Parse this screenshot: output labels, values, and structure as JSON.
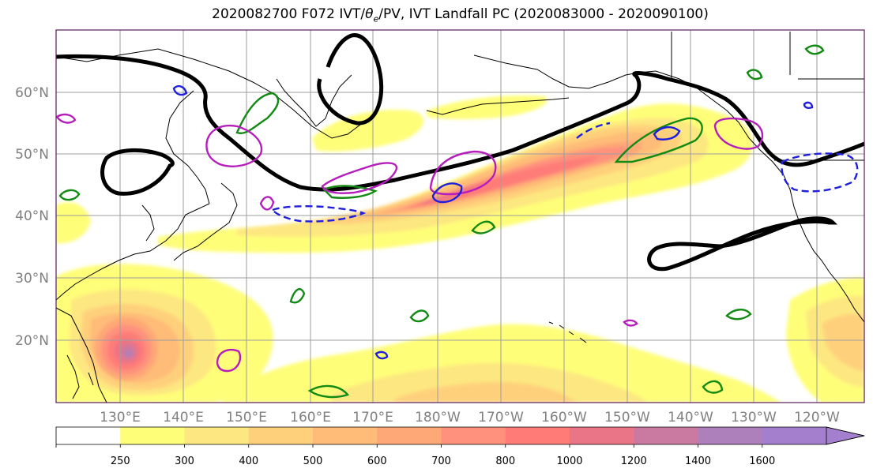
{
  "title": {
    "prefix": "2020082700 F072 IVT/",
    "theta": "θ",
    "theta_sub": "e",
    "suffix": "/PV, IVT Landfall PC (2020083000 - 2020090100)"
  },
  "map": {
    "lon_labels": [
      "130°E",
      "140°E",
      "150°E",
      "160°E",
      "170°E",
      "180°W",
      "170°W",
      "160°W",
      "150°W",
      "140°W",
      "130°W",
      "120°W"
    ],
    "lat_labels": [
      "60°N",
      "50°N",
      "40°N",
      "30°N",
      "20°N"
    ],
    "gridline_color": "#9e9e9e",
    "contour_colors": {
      "black": "#000000",
      "green": "#138a13",
      "magenta": "#b51dbd",
      "blue": "#1f1fdc"
    }
  },
  "colorbar": {
    "levels": [
      "250",
      "300",
      "400",
      "500",
      "600",
      "700",
      "800",
      "1000",
      "1200",
      "1400",
      "1600"
    ],
    "colors": [
      "#ffffff",
      "#fffe79",
      "#fde780",
      "#ffd07c",
      "#ffbb78",
      "#fea877",
      "#ff917d",
      "#ff7b78",
      "#e97586",
      "#ca7aa1",
      "#ad7fbb",
      "#a47fcd"
    ]
  },
  "ivt_shading": {
    "colors": [
      "#fffe79",
      "#fde780",
      "#ffd07c",
      "#ffbb78",
      "#fea877",
      "#ff917d",
      "#ff7b78",
      "#e97586",
      "#ca7aa1",
      "#ad7fbb"
    ]
  }
}
